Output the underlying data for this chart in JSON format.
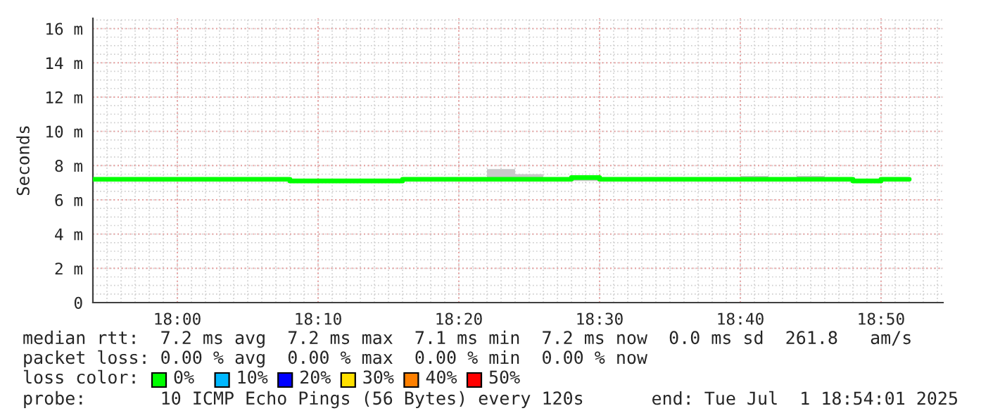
{
  "chart_data": {
    "type": "step",
    "ylabel": "Seconds",
    "xlim": [
      17.9,
      18.9067
    ],
    "xticks": [
      {
        "value": 18.0,
        "label": "18:00"
      },
      {
        "value": 18.1667,
        "label": "18:10"
      },
      {
        "value": 18.3333,
        "label": "18:20"
      },
      {
        "value": 18.5,
        "label": "18:30"
      },
      {
        "value": 18.6667,
        "label": "18:40"
      },
      {
        "value": 18.8333,
        "label": "18:50"
      }
    ],
    "ylim": [
      0,
      16.6
    ],
    "yticks": [
      0,
      {
        "value": 2,
        "label": "2 m"
      },
      {
        "value": 4,
        "label": "4 m"
      },
      {
        "value": 6,
        "label": "6 m"
      },
      {
        "value": 8,
        "label": "8 m"
      },
      {
        "value": 10,
        "label": "10 m"
      },
      {
        "value": 12,
        "label": "12 m"
      },
      {
        "value": 14,
        "label": "14 m"
      },
      {
        "value": 16,
        "label": "16 m"
      }
    ],
    "grid": true,
    "series": [
      {
        "color": "#00ff00",
        "x": [
          17.9,
          17.9333,
          17.9667,
          18.0,
          18.0333,
          18.0667,
          18.1,
          18.1333,
          18.1667,
          18.2,
          18.2333,
          18.2667,
          18.3,
          18.3333,
          18.3667,
          18.4,
          18.4333,
          18.4667,
          18.5,
          18.5333,
          18.5667,
          18.6,
          18.6333,
          18.6667,
          18.7,
          18.7333,
          18.7667,
          18.8,
          18.8333,
          18.8667
        ],
        "values": [
          7.2,
          7.2,
          7.2,
          7.2,
          7.2,
          7.2,
          7.2,
          7.1,
          7.1,
          7.1,
          7.1,
          7.2,
          7.2,
          7.2,
          7.2,
          7.2,
          7.2,
          7.3,
          7.2,
          7.2,
          7.2,
          7.2,
          7.2,
          7.2,
          7.2,
          7.2,
          7.2,
          7.1,
          7.2,
          7.2
        ],
        "lower": [
          7.1,
          7.1,
          7.1,
          7.1,
          7.1,
          7.1,
          7.1,
          7.1,
          7.1,
          7.1,
          7.1,
          7.1,
          7.1,
          7.1,
          7.1,
          7.1,
          7.1,
          7.1,
          7.1,
          7.1,
          7.1,
          7.1,
          7.1,
          7.1,
          7.1,
          7.1,
          7.1,
          7.1,
          7.1,
          7.1
        ],
        "upper": [
          7.2,
          7.3,
          7.2,
          7.2,
          7.2,
          7.2,
          7.2,
          7.2,
          7.2,
          7.2,
          7.2,
          7.3,
          7.3,
          7.3,
          7.8,
          7.5,
          7.3,
          7.3,
          7.3,
          7.3,
          7.3,
          7.3,
          7.2,
          7.4,
          7.3,
          7.4,
          7.2,
          7.2,
          7.2,
          7.2
        ]
      }
    ],
    "annotations": [
      "median rtt:  7.2 ms avg  7.2 ms max  7.1 ms min  7.2 ms now  0.0 ms sd  261.8   am/s",
      "packet loss: 0.00 % avg  0.00 % max  0.00 % min  0.00 % now",
      "loss color:",
      "0%",
      "10%",
      "20%",
      "30%",
      "40%",
      "50%",
      "probe:       10 ICMP Echo Pings (56 Bytes) every 120s",
      "end: Tue Jul  1 18:54:01 2025"
    ]
  }
}
